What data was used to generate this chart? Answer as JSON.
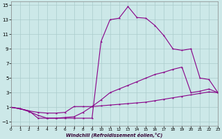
{
  "xlabel": "Windchill (Refroidissement éolien,°C)",
  "background_color": "#cce8e8",
  "grid_color": "#aacccc",
  "line_color": "#880088",
  "xlim": [
    0,
    23
  ],
  "ylim": [
    -1.5,
    15.5
  ],
  "xticks": [
    0,
    1,
    2,
    3,
    4,
    5,
    6,
    7,
    8,
    9,
    10,
    11,
    12,
    13,
    14,
    15,
    16,
    17,
    18,
    19,
    20,
    21,
    22,
    23
  ],
  "yticks": [
    -1,
    1,
    3,
    5,
    7,
    9,
    11,
    13,
    15
  ],
  "line1_x": [
    0,
    1,
    2,
    3,
    4,
    5,
    6,
    7,
    8,
    9,
    10,
    11,
    12,
    13,
    14,
    15,
    16,
    17,
    18,
    19,
    20,
    21,
    22,
    23
  ],
  "line1_y": [
    1.0,
    0.8,
    0.5,
    0.3,
    0.2,
    0.2,
    0.3,
    1.1,
    1.1,
    1.1,
    1.2,
    1.3,
    1.4,
    1.5,
    1.6,
    1.7,
    1.9,
    2.1,
    2.3,
    2.5,
    2.7,
    2.9,
    3.1,
    3.0
  ],
  "line2_x": [
    0,
    1,
    2,
    3,
    4,
    5,
    6,
    7,
    8,
    9,
    10,
    11,
    12,
    13,
    14,
    15,
    16,
    17,
    18,
    19,
    20,
    21,
    22,
    23
  ],
  "line2_y": [
    1.0,
    0.8,
    0.5,
    -0.5,
    -0.5,
    -0.5,
    -0.5,
    -0.5,
    -0.5,
    -0.5,
    10.0,
    13.0,
    13.2,
    14.8,
    13.3,
    13.2,
    12.2,
    10.8,
    9.0,
    8.8,
    9.0,
    5.0,
    4.8,
    3.0
  ],
  "line3_x": [
    0,
    1,
    2,
    3,
    4,
    5,
    6,
    7,
    8,
    9,
    10,
    11,
    12,
    13,
    14,
    15,
    16,
    17,
    18,
    19,
    20,
    21,
    22,
    23
  ],
  "line3_y": [
    1.0,
    0.8,
    0.4,
    -0.1,
    -0.5,
    -0.5,
    -0.4,
    -0.3,
    0.3,
    1.1,
    2.0,
    3.0,
    3.5,
    4.0,
    4.5,
    5.0,
    5.5,
    5.8,
    6.2,
    6.5,
    3.0,
    3.2,
    3.5,
    3.0
  ]
}
